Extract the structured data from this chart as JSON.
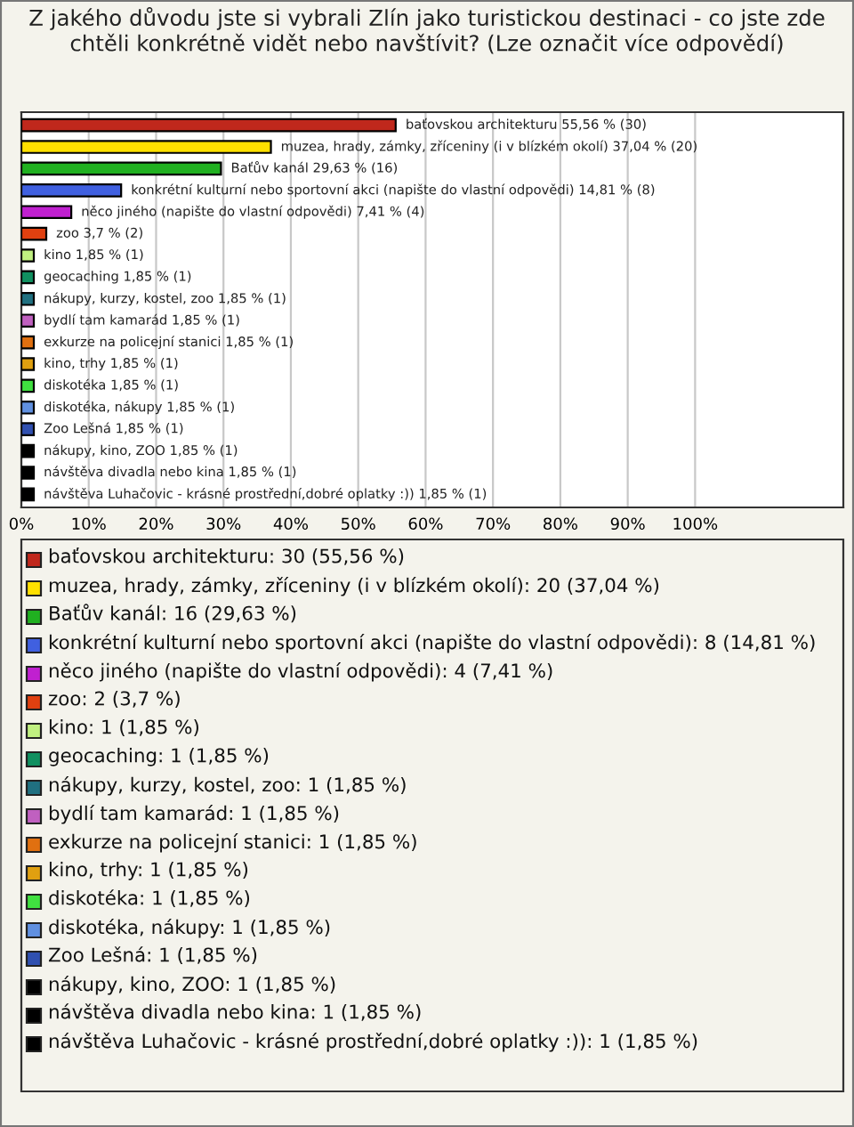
{
  "chart_data": {
    "type": "bar",
    "orientation": "horizontal",
    "title": "Z jakého důvodu jste si vybrali Zlín jako turistickou destinaci - co jste zde chtěli konkrétně vidět nebo navštívit? (Lze označit více odpovědí)",
    "categories": [
      null,
      null,
      null,
      null,
      null,
      null,
      null,
      null,
      null,
      null,
      null,
      null,
      null,
      null,
      null,
      null,
      null,
      null
    ],
    "values": [
      55.56,
      37.04,
      29.63,
      14.81,
      7.41,
      3.7,
      1.85,
      1.85,
      1.85,
      1.85,
      1.85,
      1.85,
      1.85,
      1.85,
      1.85,
      1.85,
      1.85,
      1.85
    ],
    "colors": [
      "#c0281c",
      "#ffe000",
      "#20b020",
      "#4060e0",
      "#c020d0",
      "#e04010",
      "#c0f080",
      "#109060",
      "#207080",
      "#c060c0",
      "#e07010",
      "#e0a010",
      "#40e040",
      "#6090e0",
      "#3050b0",
      "#000000",
      "#000000",
      "#000000"
    ],
    "value_labels": [
      "baťovskou architekturu 55,56 % (30)",
      "muzea, hrady, zámky, zříceniny (i v blízkém okolí) 37,04 % (20)",
      "Baťův kanál 29,63 % (16)",
      "konkrétní kulturní nebo sportovní akci (napište do vlastní odpovědi) 14,81 % (8)",
      "něco jiného (napište do vlastní odpovědi) 7,41 % (4)",
      "zoo 3,7 % (2)",
      "kino 1,85 % (1)",
      "geocaching 1,85 % (1)",
      "nákupy, kurzy, kostel, zoo 1,85 % (1)",
      "bydlí tam kamarád 1,85 % (1)",
      "exkurze na policejní stanici 1,85 % (1)",
      "kino, trhy 1,85 % (1)",
      "diskotéka 1,85 % (1)",
      "diskotéka, nákupy 1,85 % (1)",
      "Zoo Lešná 1,85 % (1)",
      "nákupy, kino, ZOO 1,85 % (1)",
      "návštěva divadla nebo kina 1,85 % (1)",
      "návštěva Luhačovic - krásné prostřední,dobré oplatky :)) 1,85 % (1)"
    ],
    "xlim": [
      0,
      122
    ],
    "xticks": [
      {
        "value": 0,
        "label": "0%"
      },
      {
        "value": 10,
        "label": "10%"
      },
      {
        "value": 20,
        "label": "20%"
      },
      {
        "value": 30,
        "label": "30%"
      },
      {
        "value": 40,
        "label": "40%"
      },
      {
        "value": 50,
        "label": "50%"
      },
      {
        "value": 60,
        "label": "60%"
      },
      {
        "value": 70,
        "label": "70%"
      },
      {
        "value": 80,
        "label": "80%"
      },
      {
        "value": 90,
        "label": "90%"
      },
      {
        "value": 100,
        "label": "100%"
      }
    ],
    "grid": "x",
    "annotations": [
      "baťovskou architekturu: 30 (55,56 %)",
      "muzea, hrady, zámky, zříceniny (i v blízkém okolí): 20 (37,04 %)",
      "Baťův kanál: 16 (29,63 %)",
      "konkrétní kulturní nebo sportovní akci (napište do vlastní odpovědi): 8 (14,81 %)",
      "něco jiného (napište do vlastní odpovědi): 4 (7,41 %)",
      "zoo: 2 (3,7 %)",
      "kino: 1 (1,85 %)",
      "geocaching: 1 (1,85 %)",
      "nákupy, kurzy, kostel, zoo: 1 (1,85 %)",
      "bydlí tam kamarád: 1 (1,85 %)",
      "exkurze na policejní stanici: 1 (1,85 %)",
      "kino, trhy: 1 (1,85 %)",
      "diskotéka: 1 (1,85 %)",
      "diskotéka, nákupy: 1 (1,85 %)",
      "Zoo Lešná: 1 (1,85 %)",
      "nákupy, kino, ZOO: 1 (1,85 %)",
      "návštěva divadla nebo kina: 1 (1,85 %)",
      "návštěva Luhačovic - krásné prostřední,dobré oplatky :)): 1 (1,85 %)"
    ]
  }
}
